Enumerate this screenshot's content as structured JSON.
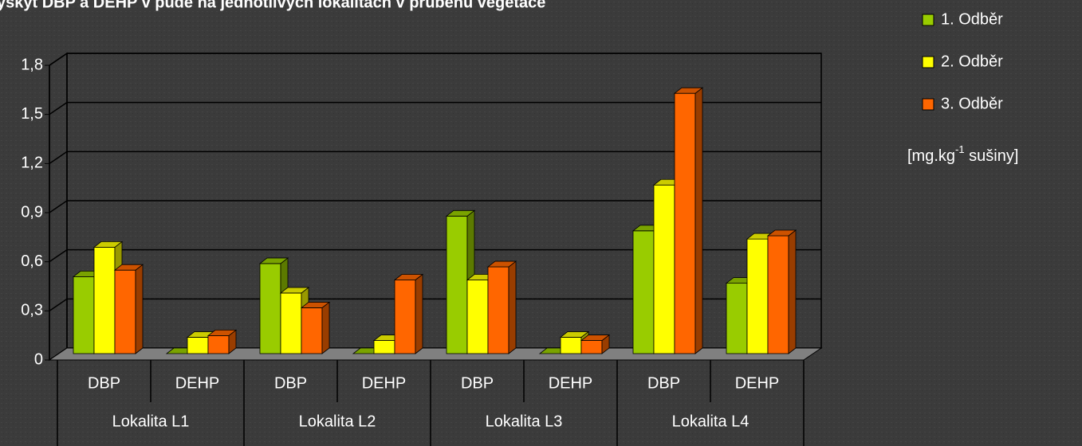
{
  "chart_data": {
    "type": "bar3d",
    "title": "ýskyt DBP  a DEHP  v půdě na jednotlivých lokalitách v průběhu vegetace",
    "categories": [
      "DBP",
      "DEHP",
      "DBP",
      "DEHP",
      "DBP",
      "DEHP",
      "DBP",
      "DEHP"
    ],
    "groups": [
      "Lokalita L1",
      "Lokalita L2",
      "Lokalita L3",
      "Lokalita L4"
    ],
    "series": [
      {
        "name": "1. Odběr",
        "color": "#99cc00",
        "values": [
          0.47,
          0,
          0.55,
          0,
          0.84,
          0,
          0.75,
          0.43
        ]
      },
      {
        "name": "2. Odběr",
        "color": "#ffff00",
        "values": [
          0.65,
          0.1,
          0.37,
          0.08,
          0.45,
          0.1,
          1.03,
          0.7
        ]
      },
      {
        "name": "3. Odběr",
        "color": "#ff6600",
        "values": [
          0.51,
          0.11,
          0.28,
          0.45,
          0.53,
          0.08,
          1.59,
          0.72
        ]
      }
    ],
    "unit_label": [
      "[mg.kg",
      "-1",
      " sušiny]"
    ],
    "ylim": [
      0,
      1.8
    ],
    "yticks": [
      0,
      {
        "value": 0.3,
        "label": "0,3"
      },
      {
        "value": 0.6,
        "label": "0,6"
      },
      {
        "value": 0.9,
        "label": "0,9"
      },
      {
        "value": 1.2,
        "label": "1,2"
      },
      {
        "value": 1.5,
        "label": "1,5"
      },
      {
        "value": 1.8,
        "label": "1,8"
      }
    ],
    "grid": true
  }
}
